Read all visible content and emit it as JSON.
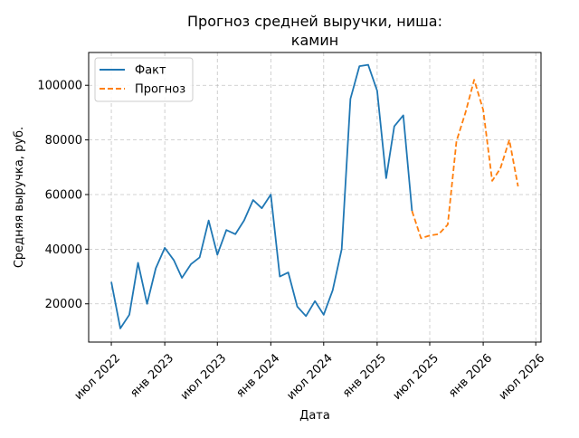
{
  "chart_data": {
    "type": "line",
    "title_lines": [
      "Прогноз средней выручки, ниша:",
      "камин"
    ],
    "xlabel": "Дата",
    "ylabel": "Средняя выручка, руб.",
    "xlim": [
      "2022-04-14",
      "2026-07-19"
    ],
    "ylim": [
      6000,
      112000
    ],
    "y_ticks": [
      20000,
      40000,
      60000,
      80000,
      100000
    ],
    "x_ticks": [
      {
        "date": "2022-07-01",
        "label": "июл 2022"
      },
      {
        "date": "2023-01-01",
        "label": "янв 2023"
      },
      {
        "date": "2023-07-01",
        "label": "июл 2023"
      },
      {
        "date": "2024-01-01",
        "label": "янв 2024"
      },
      {
        "date": "2024-07-01",
        "label": "июл 2024"
      },
      {
        "date": "2025-01-01",
        "label": "янв 2025"
      },
      {
        "date": "2025-07-01",
        "label": "июл 2025"
      },
      {
        "date": "2026-01-01",
        "label": "янв 2026"
      },
      {
        "date": "2026-07-01",
        "label": "июл 2026"
      }
    ],
    "grid": true,
    "legend_position": "top-left",
    "series": [
      {
        "name": "Факт",
        "color": "#1f77b4",
        "style": "solid",
        "points": [
          [
            "2022-07-01",
            28000
          ],
          [
            "2022-08-01",
            11000
          ],
          [
            "2022-09-01",
            16000
          ],
          [
            "2022-10-01",
            35000
          ],
          [
            "2022-11-01",
            20000
          ],
          [
            "2022-12-01",
            33000
          ],
          [
            "2023-01-01",
            40500
          ],
          [
            "2023-02-01",
            36000
          ],
          [
            "2023-03-01",
            29500
          ],
          [
            "2023-04-01",
            34500
          ],
          [
            "2023-05-01",
            37000
          ],
          [
            "2023-06-01",
            50500
          ],
          [
            "2023-07-01",
            38000
          ],
          [
            "2023-08-01",
            47000
          ],
          [
            "2023-09-01",
            45500
          ],
          [
            "2023-10-01",
            50500
          ],
          [
            "2023-11-01",
            58000
          ],
          [
            "2023-12-01",
            55000
          ],
          [
            "2024-01-01",
            60000
          ],
          [
            "2024-02-01",
            30000
          ],
          [
            "2024-03-01",
            31500
          ],
          [
            "2024-04-01",
            19000
          ],
          [
            "2024-05-01",
            15500
          ],
          [
            "2024-06-01",
            21000
          ],
          [
            "2024-07-01",
            16000
          ],
          [
            "2024-08-01",
            25000
          ],
          [
            "2024-09-01",
            40000
          ],
          [
            "2024-10-01",
            95000
          ],
          [
            "2024-11-01",
            107000
          ],
          [
            "2024-12-01",
            107500
          ],
          [
            "2025-01-01",
            98000
          ],
          [
            "2025-02-01",
            66000
          ],
          [
            "2025-03-01",
            85000
          ],
          [
            "2025-04-01",
            89000
          ],
          [
            "2025-05-01",
            54000
          ]
        ]
      },
      {
        "name": "Прогноз",
        "color": "#ff7f0e",
        "style": "dashed",
        "points": [
          [
            "2025-05-01",
            54000
          ],
          [
            "2025-06-01",
            44000
          ],
          [
            "2025-07-01",
            45000
          ],
          [
            "2025-08-01",
            45500
          ],
          [
            "2025-09-01",
            49000
          ],
          [
            "2025-10-01",
            79500
          ],
          [
            "2025-11-01",
            90000
          ],
          [
            "2025-12-01",
            102000
          ],
          [
            "2026-01-01",
            91000
          ],
          [
            "2026-02-01",
            65000
          ],
          [
            "2026-03-01",
            69500
          ],
          [
            "2026-04-01",
            80000
          ],
          [
            "2026-05-01",
            63000
          ]
        ]
      }
    ]
  }
}
